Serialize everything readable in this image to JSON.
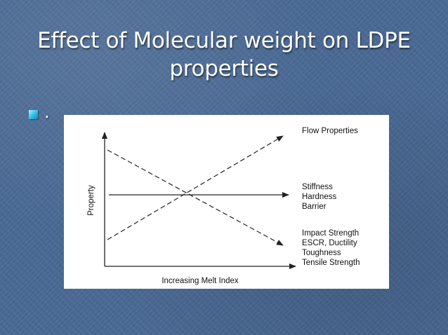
{
  "slide": {
    "title_line1": "Effect of Molecular weight on LDPE",
    "title_line2": "properties",
    "bullet_text": "."
  },
  "diagram": {
    "y_axis_label": "Property",
    "x_axis_label": "Increasing Melt Index",
    "rising_line_label": "Flow Properties",
    "flat_line_labels": [
      "Stiffness",
      "Hardness",
      "Barrier"
    ],
    "falling_line_labels": [
      "Impact Strength",
      "ESCR, Ductility",
      "Toughness",
      "Tensile Strength"
    ]
  },
  "colors": {
    "background": "#4a6a96",
    "title_text": "#ffffff",
    "bullet": "#38c8f0",
    "figure_background": "#ffffff",
    "line": "#222222"
  }
}
